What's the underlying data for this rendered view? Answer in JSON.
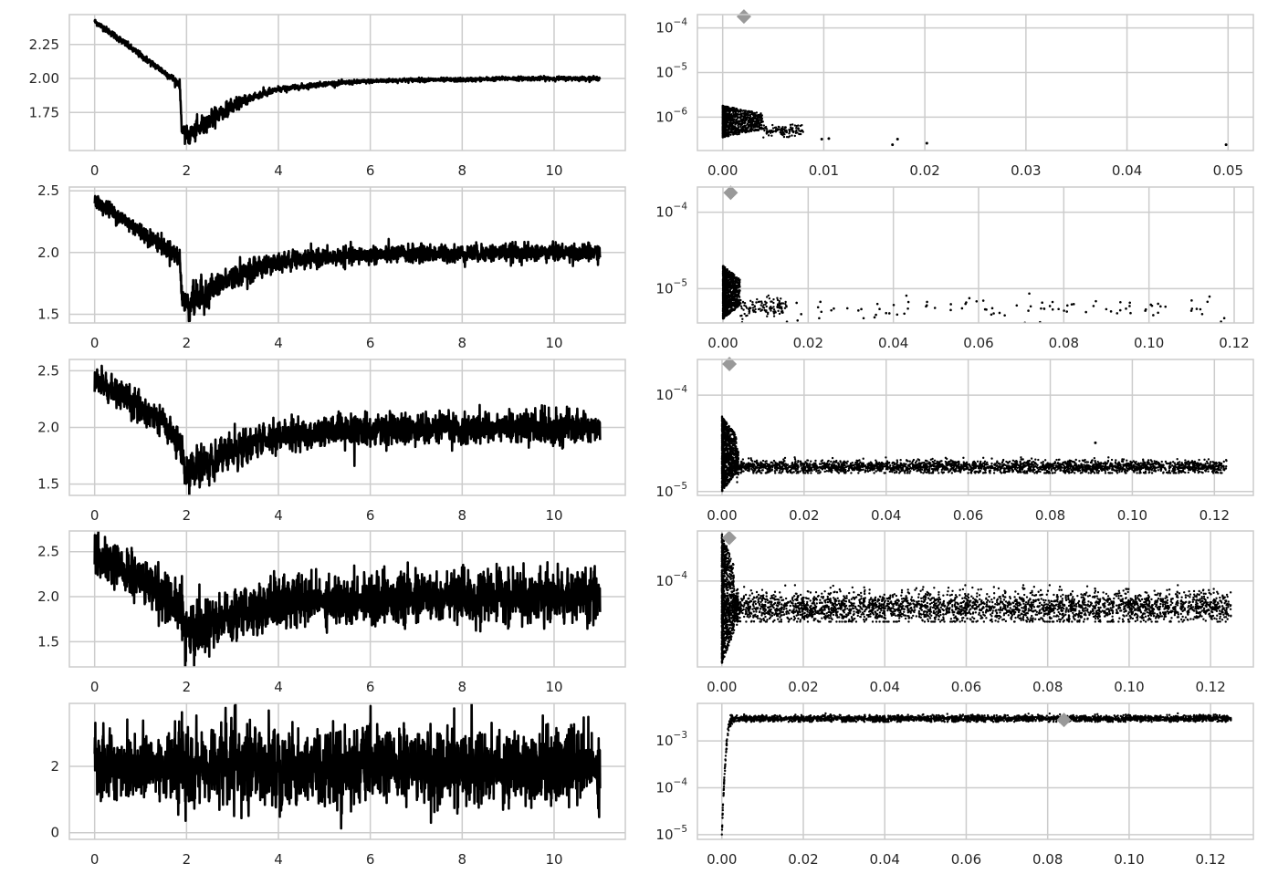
{
  "chart_data": [
    {
      "type": "line",
      "xlim": [
        -0.55,
        11.55
      ],
      "ylim": [
        1.47,
        2.47
      ],
      "xticks": [
        0,
        2,
        4,
        6,
        8,
        10
      ],
      "yticks": [
        1.75,
        2.0,
        2.25
      ],
      "xtick_labels": [
        "0",
        "2",
        "4",
        "6",
        "8",
        "10"
      ],
      "ytick_labels": [
        "1.75",
        "2.00",
        "2.25"
      ],
      "grid": true,
      "color": "#000000",
      "x": [
        0,
        0.5,
        1.0,
        1.5,
        1.85,
        1.9,
        2.0,
        2.3,
        2.6,
        3.0,
        3.5,
        4.0,
        4.5,
        5.0,
        5.5,
        6.0,
        7.0,
        8.0,
        9.0,
        10.0,
        11.0
      ],
      "y": [
        2.42,
        2.3,
        2.17,
        2.05,
        1.96,
        1.62,
        1.57,
        1.64,
        1.72,
        1.8,
        1.87,
        1.92,
        1.94,
        1.96,
        1.97,
        1.98,
        1.99,
        1.99,
        2.0,
        2.0,
        2.0
      ],
      "noise": [
        0.01,
        0.012,
        0.012,
        0.013,
        0.015,
        0.02,
        0.03,
        0.035,
        0.03,
        0.022,
        0.015,
        0.01,
        0.01,
        0.008,
        0.008,
        0.007,
        0.007,
        0.007,
        0.007,
        0.007,
        0.007
      ]
    },
    {
      "type": "scatter",
      "xlim": [
        -0.0025,
        0.0525
      ],
      "ylim_log10": [
        -6.75,
        -3.7
      ],
      "xticks": [
        0.0,
        0.01,
        0.02,
        0.03,
        0.04,
        0.05
      ],
      "xtick_labels": [
        "0.00",
        "0.01",
        "0.02",
        "0.03",
        "0.04",
        "0.05"
      ],
      "yticks_log10": [
        -6,
        -5,
        -4
      ],
      "ytick_labels": [
        "10",
        "10",
        "10"
      ],
      "ytick_exponents": [
        "−6",
        "−5",
        "−4"
      ],
      "grid": true,
      "color": "#000000",
      "cluster": {
        "x_max": 0.004,
        "y_min": 3.5e-07,
        "y_max": 1.8e-06,
        "tail_to_x": 0.008,
        "tail_y": 5e-07
      },
      "outliers": [
        {
          "x": 0.0098,
          "y": 3.2e-07
        },
        {
          "x": 0.0105,
          "y": 3.3e-07
        },
        {
          "x": 0.0168,
          "y": 2.4e-07
        },
        {
          "x": 0.0173,
          "y": 3.2e-07
        },
        {
          "x": 0.0202,
          "y": 2.6e-07
        },
        {
          "x": 0.0498,
          "y": 2.4e-07
        }
      ],
      "marker": {
        "x": 0.0021,
        "y": 0.00018,
        "color": "#999999"
      }
    },
    {
      "type": "line",
      "xlim": [
        -0.55,
        11.55
      ],
      "ylim": [
        1.43,
        2.53
      ],
      "xticks": [
        0,
        2,
        4,
        6,
        8,
        10
      ],
      "yticks": [
        1.5,
        2.0,
        2.5
      ],
      "xtick_labels": [
        "0",
        "2",
        "4",
        "6",
        "8",
        "10"
      ],
      "ytick_labels": [
        "1.5",
        "2.0",
        "2.5"
      ],
      "grid": true,
      "color": "#000000",
      "x": [
        0,
        0.5,
        1.0,
        1.5,
        1.85,
        1.9,
        2.0,
        2.3,
        2.6,
        3.0,
        3.5,
        4.0,
        4.5,
        5.0,
        5.5,
        6.0,
        7.0,
        8.0,
        9.0,
        10.0,
        11.0
      ],
      "y": [
        2.42,
        2.3,
        2.17,
        2.05,
        1.96,
        1.63,
        1.58,
        1.64,
        1.72,
        1.8,
        1.87,
        1.92,
        1.94,
        1.96,
        1.97,
        1.98,
        1.99,
        1.99,
        2.0,
        2.0,
        2.0
      ],
      "noise": [
        0.03,
        0.035,
        0.035,
        0.035,
        0.04,
        0.05,
        0.06,
        0.06,
        0.05,
        0.045,
        0.04,
        0.035,
        0.035,
        0.035,
        0.035,
        0.035,
        0.035,
        0.035,
        0.035,
        0.035,
        0.035
      ]
    },
    {
      "type": "scatter",
      "xlim": [
        -0.006,
        0.1245
      ],
      "ylim_log10": [
        -5.45,
        -3.67
      ],
      "xticks": [
        0.0,
        0.02,
        0.04,
        0.06,
        0.08,
        0.1,
        0.12
      ],
      "xtick_labels": [
        "0.00",
        "0.02",
        "0.04",
        "0.06",
        "0.08",
        "0.10",
        "0.12"
      ],
      "yticks_log10": [
        -5,
        -4
      ],
      "ytick_labels": [
        "10",
        "10"
      ],
      "ytick_exponents": [
        "−5",
        "−4"
      ],
      "grid": true,
      "color": "#000000",
      "cluster": {
        "x_max": 0.004,
        "y_min": 4e-06,
        "y_max": 2e-05,
        "tail_to_x": 0.015,
        "tail_y": 5.5e-06
      },
      "sparse": {
        "x_from": 0.015,
        "x_to": 0.118,
        "count": 95,
        "y_center": 5.5e-06,
        "spread_log10": 0.07
      },
      "marker": {
        "x": 0.0018,
        "y": 0.00018,
        "color": "#999999"
      }
    },
    {
      "type": "line",
      "xlim": [
        -0.55,
        11.55
      ],
      "ylim": [
        1.4,
        2.6
      ],
      "xticks": [
        0,
        2,
        4,
        6,
        8,
        10
      ],
      "yticks": [
        1.5,
        2.0,
        2.5
      ],
      "xtick_labels": [
        "0",
        "2",
        "4",
        "6",
        "8",
        "10"
      ],
      "ytick_labels": [
        "1.5",
        "2.0",
        "2.5"
      ],
      "grid": true,
      "color": "#000000",
      "x": [
        0,
        0.5,
        1.0,
        1.5,
        1.85,
        2.0,
        2.3,
        2.6,
        3.0,
        3.5,
        4.0,
        4.5,
        5.0,
        6.0,
        7.0,
        8.0,
        9.0,
        10.0,
        11.0
      ],
      "y": [
        2.42,
        2.3,
        2.17,
        2.05,
        1.85,
        1.6,
        1.66,
        1.73,
        1.8,
        1.87,
        1.92,
        1.94,
        1.96,
        1.98,
        1.99,
        1.99,
        2.0,
        2.0,
        2.0
      ],
      "noise": [
        0.06,
        0.065,
        0.065,
        0.065,
        0.07,
        0.08,
        0.08,
        0.075,
        0.07,
        0.065,
        0.065,
        0.065,
        0.065,
        0.065,
        0.065,
        0.065,
        0.065,
        0.07,
        0.07
      ]
    },
    {
      "type": "scatter",
      "xlim": [
        -0.006,
        0.1295
      ],
      "ylim_log10": [
        -5.04,
        -3.63
      ],
      "xticks": [
        0.0,
        0.02,
        0.04,
        0.06,
        0.08,
        0.1,
        0.12
      ],
      "xtick_labels": [
        "0.00",
        "0.02",
        "0.04",
        "0.06",
        "0.08",
        "0.10",
        "0.12"
      ],
      "yticks_log10": [
        -5,
        -4
      ],
      "ytick_labels": [
        "10",
        "10"
      ],
      "ytick_exponents": [
        "−5",
        "−4"
      ],
      "grid": true,
      "color": "#000000",
      "cluster": {
        "x_max": 0.0035,
        "y_min": 1e-05,
        "y_max": 6e-05,
        "tail_to_x": 0.004,
        "tail_y": 2e-05
      },
      "band": {
        "x_from": 0.003,
        "x_to": 0.123,
        "count": 2600,
        "y_center": 1.8e-05,
        "spread_log10": 0.045,
        "sigma_log10": 0.03
      },
      "outliers": [
        {
          "x": 0.091,
          "y": 3.2e-05
        }
      ],
      "marker": {
        "x": 0.0018,
        "y": 0.00021,
        "color": "#999999"
      }
    },
    {
      "type": "line",
      "xlim": [
        -0.55,
        11.55
      ],
      "ylim": [
        1.22,
        2.73
      ],
      "xticks": [
        0,
        2,
        4,
        6,
        8,
        10
      ],
      "yticks": [
        1.5,
        2.0,
        2.5
      ],
      "xtick_labels": [
        "0",
        "2",
        "4",
        "6",
        "8",
        "10"
      ],
      "ytick_labels": [
        "1.5",
        "2.0",
        "2.5"
      ],
      "grid": true,
      "color": "#000000",
      "x": [
        0,
        0.5,
        1.0,
        1.5,
        1.85,
        2.0,
        2.3,
        2.6,
        3.0,
        3.5,
        4.0,
        4.5,
        5.0,
        6.0,
        7.0,
        8.0,
        9.0,
        10.0,
        11.0
      ],
      "y": [
        2.42,
        2.32,
        2.18,
        2.05,
        1.85,
        1.62,
        1.66,
        1.73,
        1.8,
        1.87,
        1.92,
        1.94,
        1.96,
        1.98,
        1.99,
        1.99,
        2.0,
        2.0,
        2.0
      ],
      "noise": [
        0.12,
        0.13,
        0.13,
        0.13,
        0.14,
        0.15,
        0.15,
        0.14,
        0.13,
        0.13,
        0.13,
        0.13,
        0.13,
        0.13,
        0.13,
        0.13,
        0.13,
        0.14,
        0.14
      ]
    },
    {
      "type": "scatter",
      "xlim": [
        -0.006,
        0.1305
      ],
      "ylim_log10": [
        -4.72,
        -3.58
      ],
      "xticks": [
        0.0,
        0.02,
        0.04,
        0.06,
        0.08,
        0.1,
        0.12
      ],
      "xtick_labels": [
        "0.00",
        "0.02",
        "0.04",
        "0.06",
        "0.08",
        "0.10",
        "0.12"
      ],
      "yticks_log10": [
        -4
      ],
      "ytick_labels": [
        "10"
      ],
      "ytick_exponents": [
        "−4"
      ],
      "grid": true,
      "color": "#000000",
      "cluster": {
        "x_max": 0.003,
        "y_min": 2e-05,
        "y_max": 0.00025,
        "tail_to_x": 0.004,
        "tail_y": 6e-05
      },
      "band": {
        "x_from": 0.003,
        "x_to": 0.125,
        "count": 3000,
        "y_center": 6e-05,
        "spread_log10": 0.085,
        "sigma_log10": 0.06
      },
      "marker": {
        "x": 0.0018,
        "y": 0.00023,
        "color": "#999999"
      }
    },
    {
      "type": "line",
      "xlim": [
        -0.55,
        11.55
      ],
      "ylim": [
        -0.2,
        3.9
      ],
      "xticks": [
        0,
        2,
        4,
        6,
        8,
        10
      ],
      "yticks": [
        0,
        2
      ],
      "xtick_labels": [
        "0",
        "2",
        "4",
        "6",
        "8",
        "10"
      ],
      "ytick_labels": [
        "0",
        "2"
      ],
      "grid": true,
      "color": "#000000",
      "x": [
        0,
        11.0
      ],
      "y": [
        2.0,
        2.0
      ],
      "noise": [
        0.55,
        0.55
      ]
    },
    {
      "type": "scatter",
      "xlim": [
        -0.006,
        0.1305
      ],
      "ylim_log10": [
        -5.1,
        -2.2
      ],
      "xticks": [
        0.0,
        0.02,
        0.04,
        0.06,
        0.08,
        0.1,
        0.12
      ],
      "xtick_labels": [
        "0.00",
        "0.02",
        "0.04",
        "0.06",
        "0.08",
        "0.10",
        "0.12"
      ],
      "yticks_log10": [
        -5,
        -4,
        -3
      ],
      "ytick_labels": [
        "10",
        "10",
        "10"
      ],
      "ytick_exponents": [
        "−5",
        "−4",
        "−3"
      ],
      "grid": true,
      "color": "#000000",
      "ramp": {
        "x_from": 0.0,
        "x_to": 0.003,
        "y_from": 1e-05,
        "y_to": 0.003,
        "count": 120
      },
      "band": {
        "x_from": 0.003,
        "x_to": 0.125,
        "count": 2600,
        "y_center": 0.003,
        "spread_log10": 0.05,
        "sigma_log10": 0.03
      },
      "marker": {
        "x": 0.084,
        "y": 0.0028,
        "color": "#999999"
      }
    }
  ]
}
